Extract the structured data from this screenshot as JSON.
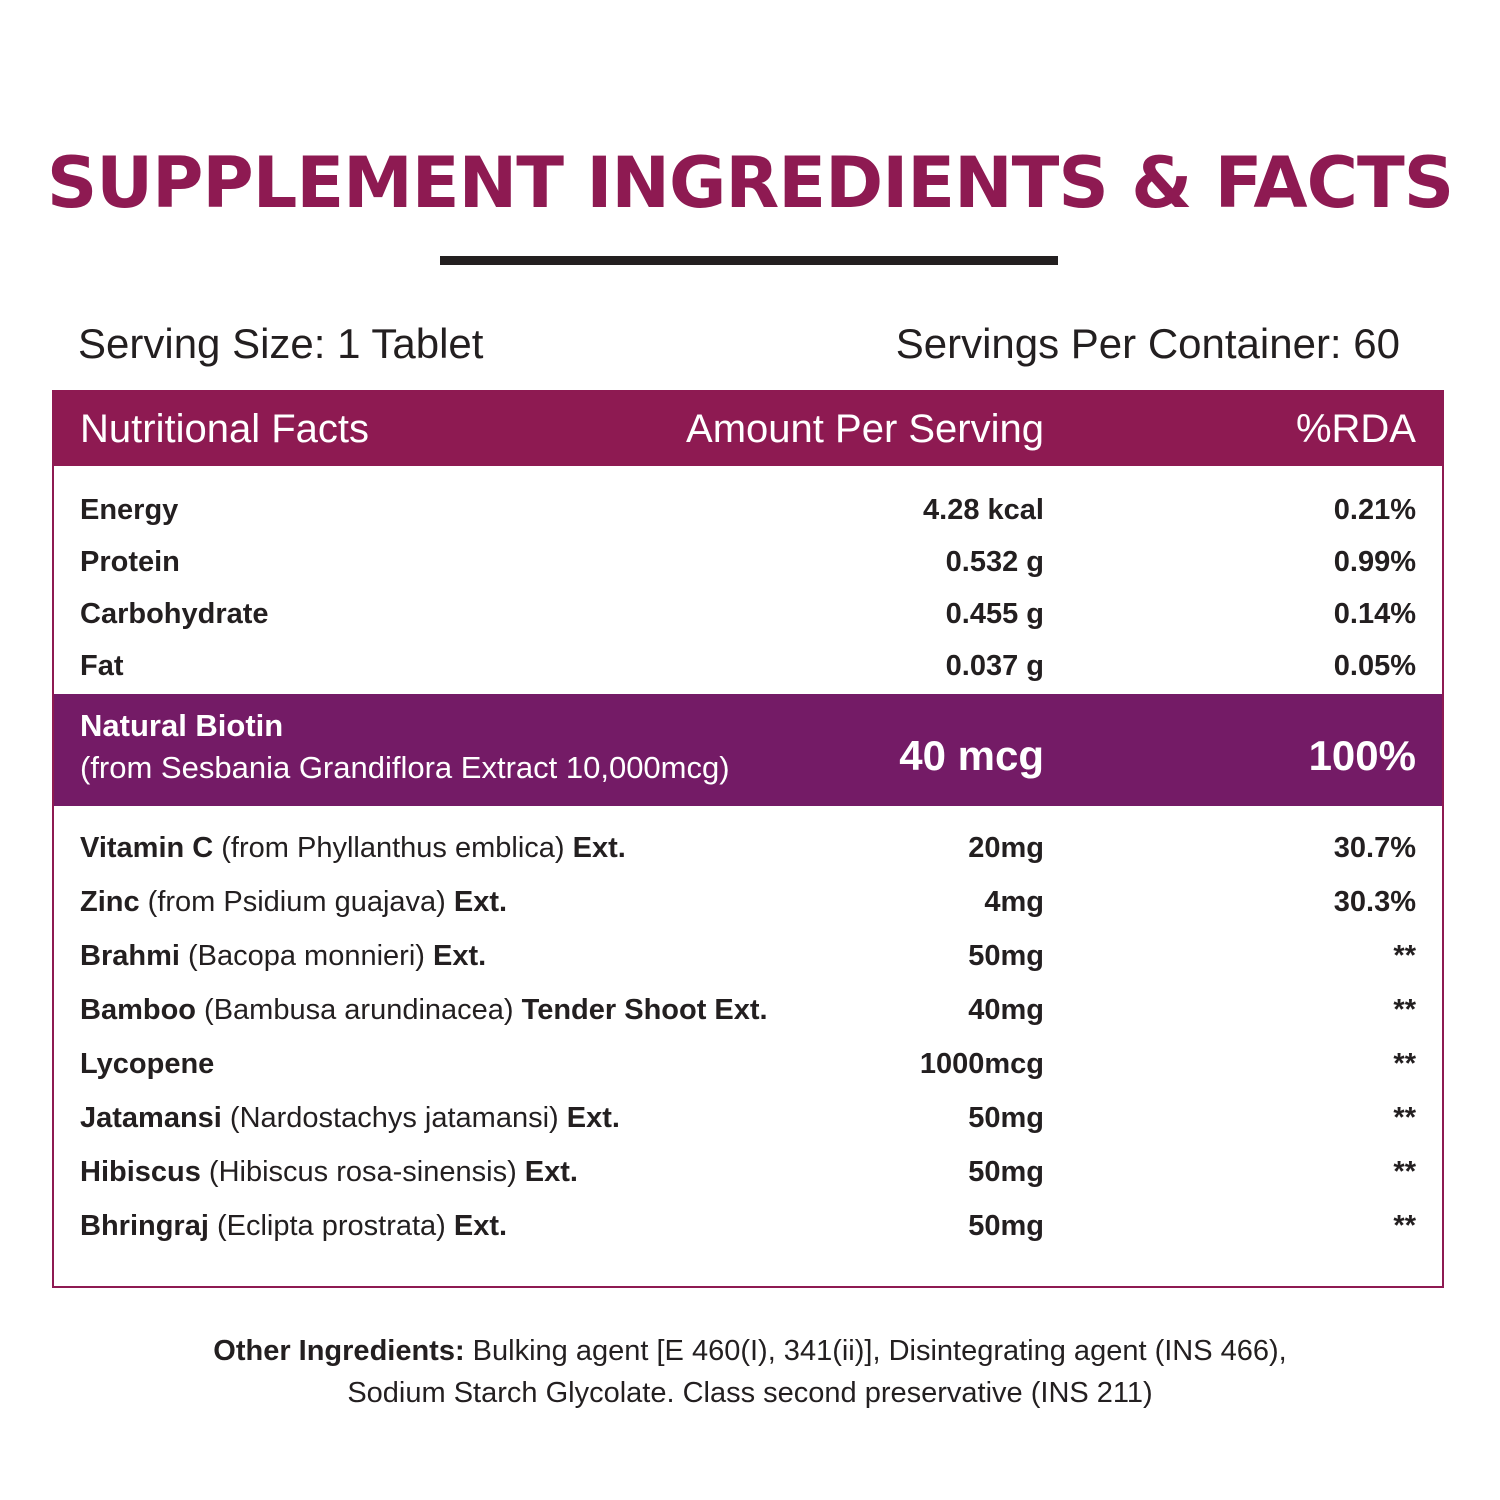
{
  "title": "SUPPLEMENT INGREDIENTS & FACTS",
  "serving_size": "Serving Size: 1 Tablet",
  "servings_per_container": "Servings Per Container: 60",
  "table": {
    "headers": {
      "name": "Nutritional Facts",
      "amount": "Amount Per Serving",
      "rda": "%RDA"
    },
    "nutrition": [
      {
        "name": "Energy",
        "amount": "4.28 kcal",
        "rda": "0.21%"
      },
      {
        "name": "Protein",
        "amount": "0.532 g",
        "rda": "0.99%"
      },
      {
        "name": "Carbohydrate",
        "amount": "0.455 g",
        "rda": "0.14%"
      },
      {
        "name": "Fat",
        "amount": "0.037 g",
        "rda": "0.05%"
      }
    ],
    "highlight": {
      "name": "Natural Biotin",
      "source": "(from Sesbania Grandiflora Extract 10,000mcg)",
      "amount": "40 mcg",
      "rda": "100%"
    },
    "ingredients": [
      {
        "name": "Vitamin C",
        "source": " (from Phyllanthus emblica) ",
        "suffix": "Ext.",
        "amount": "20mg",
        "rda": "30.7%"
      },
      {
        "name": "Zinc",
        "source": " (from Psidium guajava) ",
        "suffix": "Ext.",
        "amount": "4mg",
        "rda": "30.3%"
      },
      {
        "name": "Brahmi",
        "source": " (Bacopa monnieri) ",
        "suffix": "Ext.",
        "amount": "50mg",
        "rda": "**"
      },
      {
        "name": "Bamboo",
        "source": " (Bambusa arundinacea) ",
        "suffix": "Tender Shoot Ext.",
        "amount": "40mg",
        "rda": "**"
      },
      {
        "name": "Lycopene",
        "source": "",
        "suffix": "",
        "amount": "1000mcg",
        "rda": "**"
      },
      {
        "name": "Jatamansi",
        "source": " (Nardostachys jatamansi) ",
        "suffix": "Ext.",
        "amount": "50mg",
        "rda": "**"
      },
      {
        "name": "Hibiscus",
        "source": " (Hibiscus rosa-sinensis) ",
        "suffix": "Ext.",
        "amount": "50mg",
        "rda": "**"
      },
      {
        "name": "Bhringraj",
        "source": " (Eclipta prostrata) ",
        "suffix": "Ext.",
        "amount": "50mg",
        "rda": "**"
      }
    ]
  },
  "other_ingredients": {
    "label": "Other Ingredients:",
    "line1": " Bulking agent [E 460(I), 341(ii)], Disintegrating agent (INS 466),",
    "line2": "Sodium Starch Glycolate. Class second preservative (INS 211)"
  },
  "colors": {
    "title": "#8e1a52",
    "header_bar": "#8e1a52",
    "highlight_bar": "#741b66"
  }
}
